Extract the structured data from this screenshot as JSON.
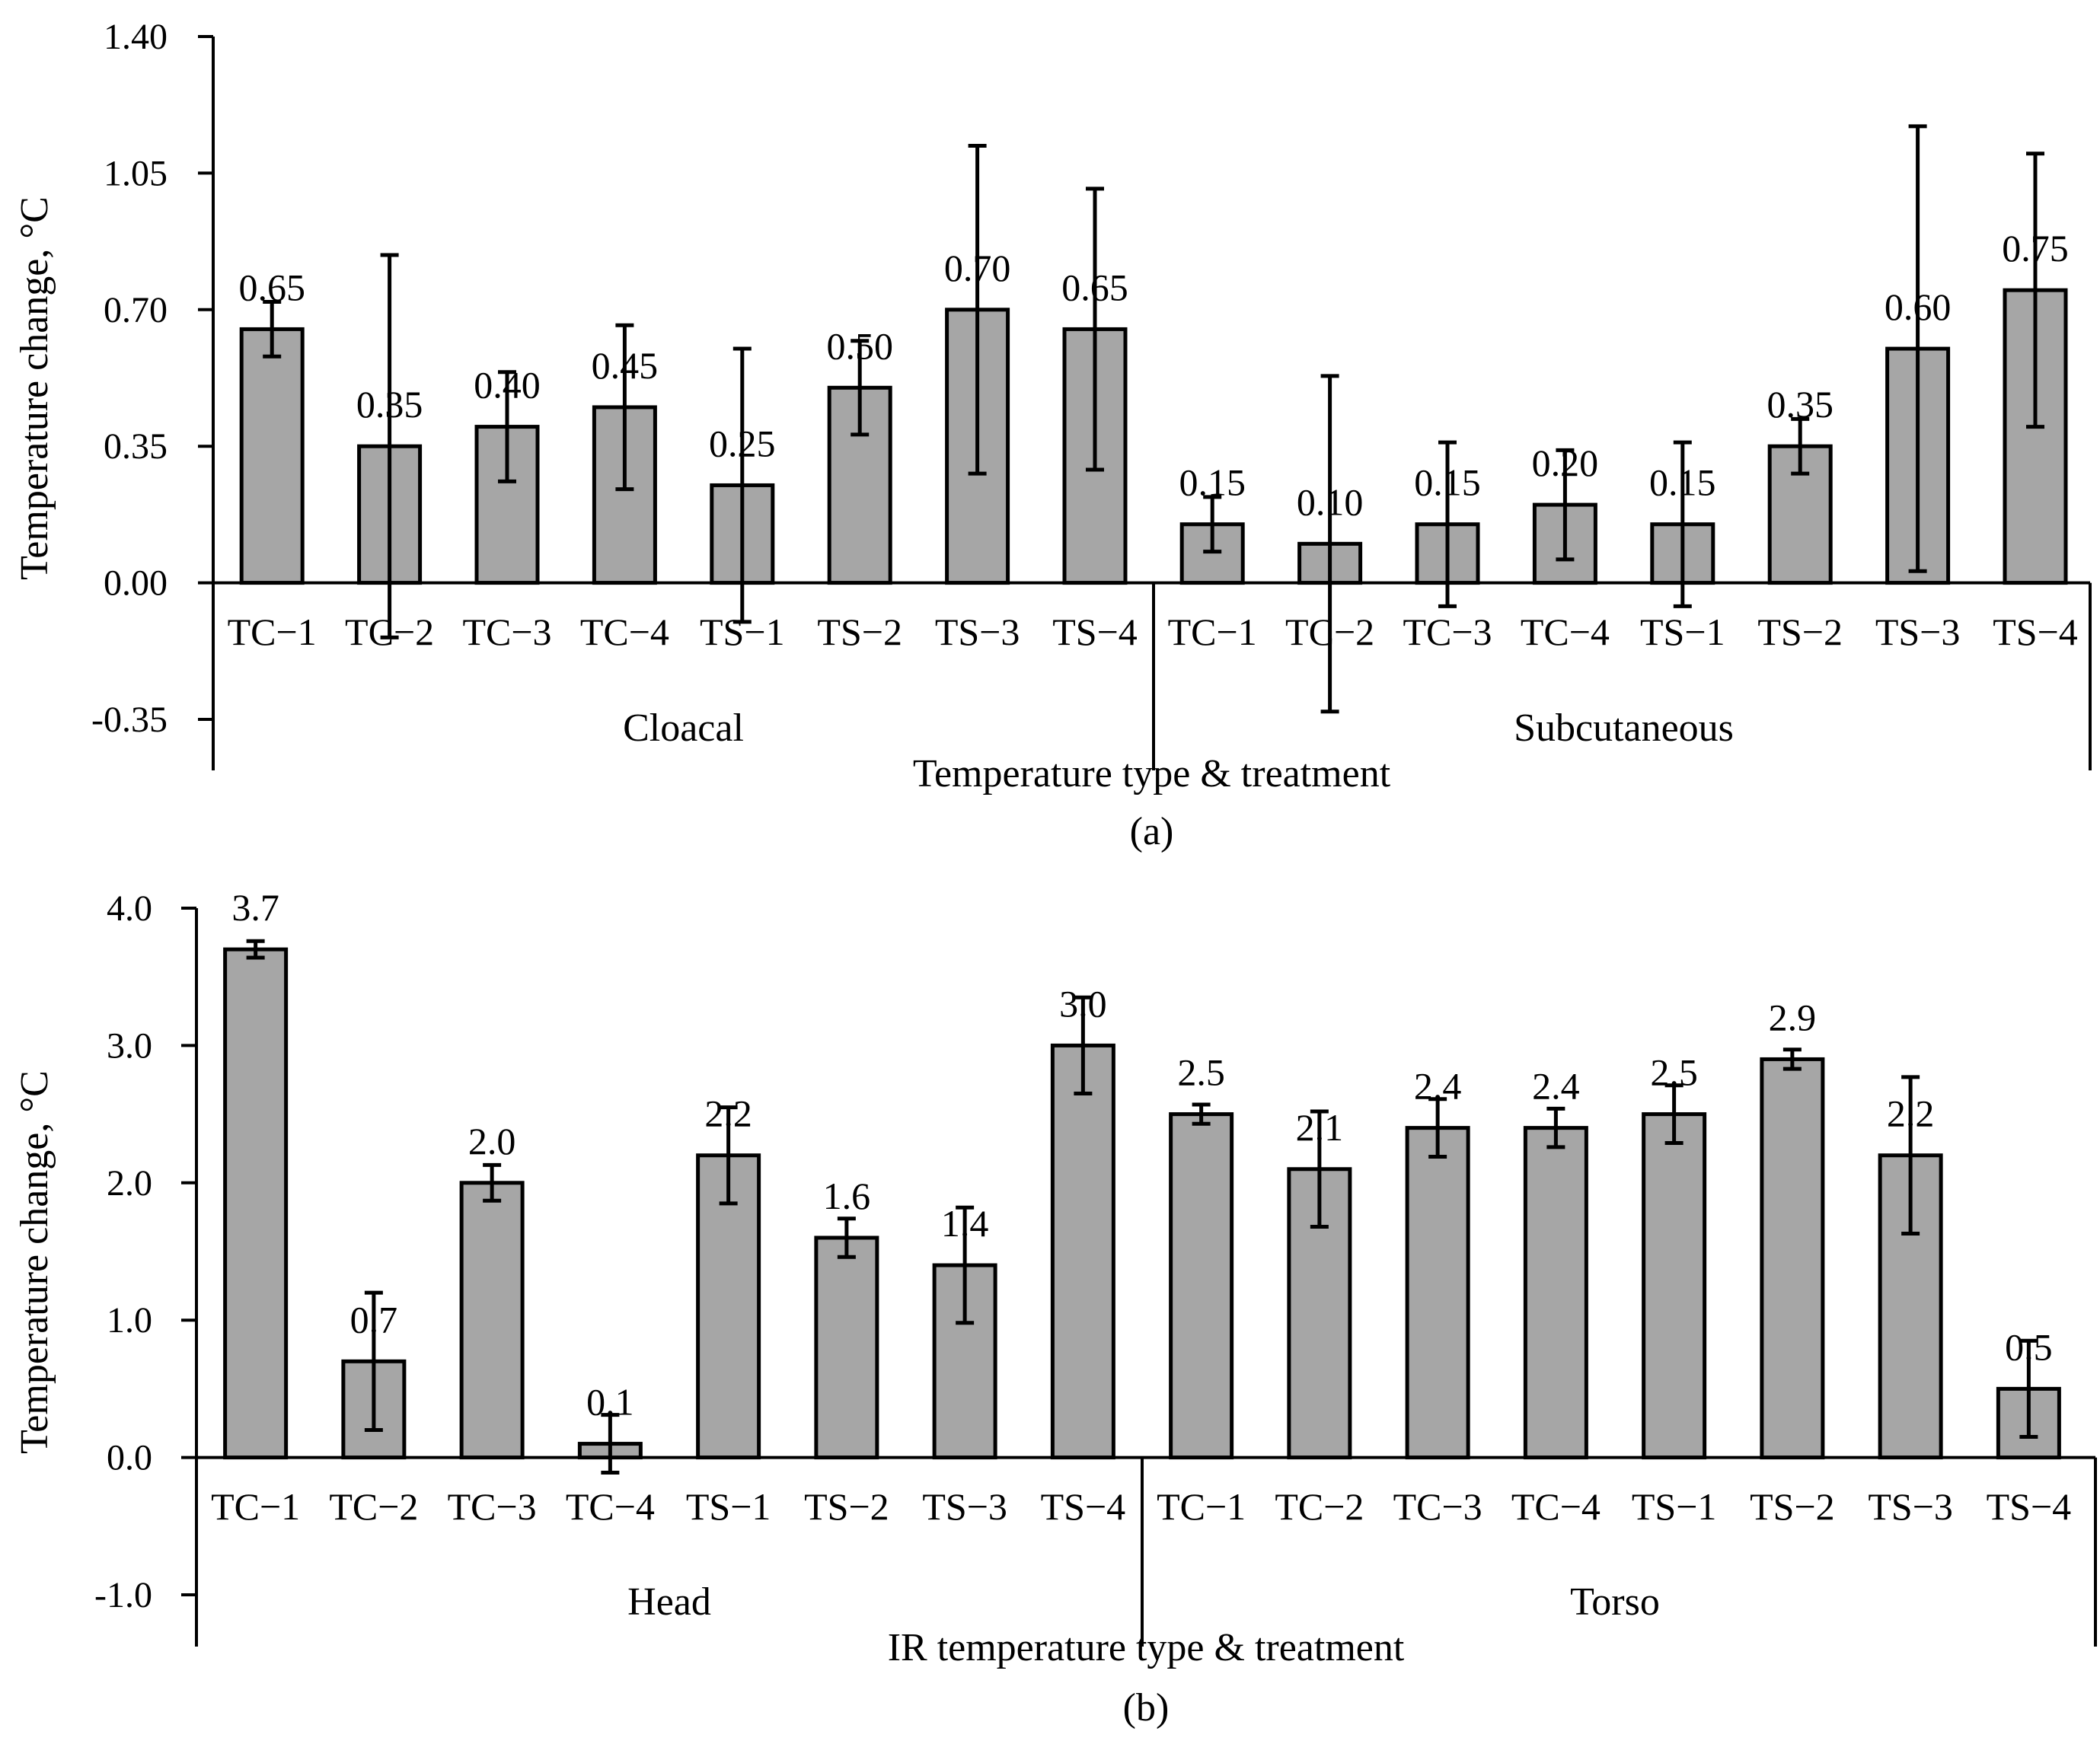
{
  "chart_data": [
    {
      "type": "bar",
      "panel_label": "(a)",
      "ylabel": "Temperature change, °C",
      "xlabel": "Temperature type & treatment",
      "ylim": [
        -0.35,
        1.4
      ],
      "yticks": [
        "1.40",
        "1.05",
        "0.70",
        "0.35",
        "0.00",
        "-0.35"
      ],
      "ytick_values": [
        1.4,
        1.05,
        0.7,
        0.35,
        0.0,
        -0.35
      ],
      "groups": [
        {
          "name": "Cloacal",
          "categories": [
            "TC−1",
            "TC−2",
            "TC−3",
            "TC−4",
            "TS−1",
            "TS−2",
            "TS−3",
            "TS−4"
          ],
          "values": [
            0.65,
            0.35,
            0.4,
            0.45,
            0.25,
            0.5,
            0.7,
            0.65
          ],
          "labels": [
            "0.65",
            "0.35",
            "0.40",
            "0.45",
            "0.25",
            "0.50",
            "0.70",
            "0.65"
          ],
          "errors": [
            0.07,
            0.49,
            0.14,
            0.21,
            0.35,
            0.12,
            0.42,
            0.36
          ]
        },
        {
          "name": "Subcutaneous",
          "categories": [
            "TC−1",
            "TC−2",
            "TC−3",
            "TC−4",
            "TS−1",
            "TS−2",
            "TS−3",
            "TS−4"
          ],
          "values": [
            0.15,
            0.1,
            0.15,
            0.2,
            0.15,
            0.35,
            0.6,
            0.75
          ],
          "labels": [
            "0.15",
            "0.10",
            "0.15",
            "0.20",
            "0.15",
            "0.35",
            "0.60",
            "0.75"
          ],
          "errors": [
            0.07,
            0.43,
            0.21,
            0.14,
            0.21,
            0.07,
            0.57,
            0.35
          ]
        }
      ]
    },
    {
      "type": "bar",
      "panel_label": "(b)",
      "ylabel": "Temperature change, °C",
      "xlabel": "IR temperature type & treatment",
      "ylim": [
        -1.0,
        4.0
      ],
      "yticks": [
        "4.0",
        "3.0",
        "2.0",
        "1.0",
        "0.0",
        "-1.0"
      ],
      "ytick_values": [
        4.0,
        3.0,
        2.0,
        1.0,
        0.0,
        -1.0
      ],
      "groups": [
        {
          "name": "Head",
          "categories": [
            "TC−1",
            "TC−2",
            "TC−3",
            "TC−4",
            "TS−1",
            "TS−2",
            "TS−3",
            "TS−4"
          ],
          "values": [
            3.7,
            0.7,
            2.0,
            0.1,
            2.2,
            1.6,
            1.4,
            3.0
          ],
          "labels": [
            "3.7",
            "0.7",
            "2.0",
            "0.1",
            "2.2",
            "1.6",
            "1.4",
            "3.0"
          ],
          "errors": [
            0.06,
            0.5,
            0.13,
            0.21,
            0.35,
            0.14,
            0.42,
            0.35
          ]
        },
        {
          "name": "Torso",
          "categories": [
            "TC−1",
            "TC−2",
            "TC−3",
            "TC−4",
            "TS−1",
            "TS−2",
            "TS−3",
            "TS−4"
          ],
          "values": [
            2.5,
            2.1,
            2.4,
            2.4,
            2.5,
            2.9,
            2.2,
            0.5
          ],
          "labels": [
            "2.5",
            "2.1",
            "2.4",
            "2.4",
            "2.5",
            "2.9",
            "2.2",
            "0.5"
          ],
          "errors": [
            0.07,
            0.42,
            0.21,
            0.14,
            0.21,
            0.07,
            0.57,
            0.35
          ]
        }
      ]
    }
  ]
}
